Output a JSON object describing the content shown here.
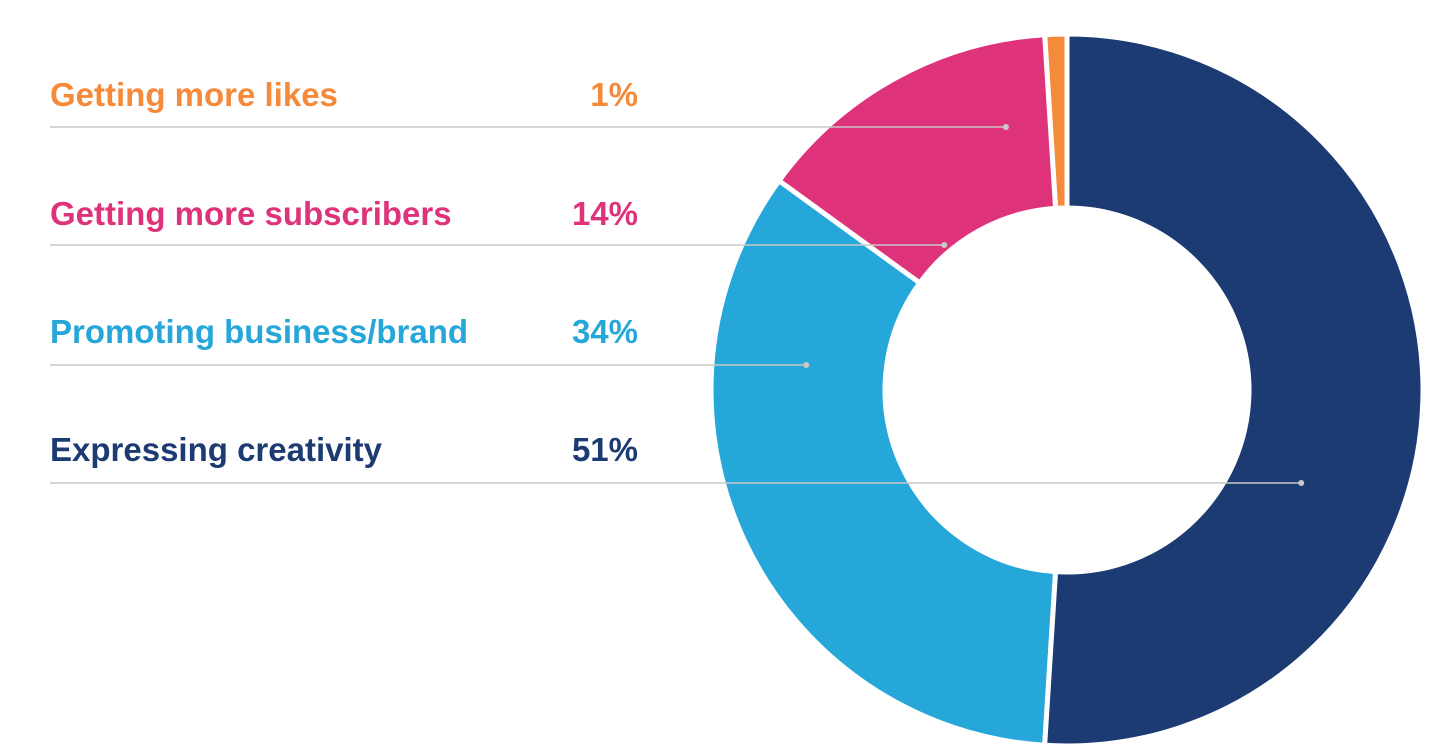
{
  "chart_data": {
    "type": "pie",
    "variant": "donut",
    "title": "",
    "legend_position": "left",
    "categories": [
      "Getting more likes",
      "Getting more subscribers",
      "Promoting business/brand",
      "Expressing creativity"
    ],
    "values": [
      1,
      14,
      34,
      51
    ],
    "value_labels": [
      "1%",
      "14%",
      "34%",
      "51%"
    ],
    "colors": [
      "#F58A3B",
      "#DE337B",
      "#26A7D9",
      "#1C3B73"
    ],
    "divider_color": "#C8C8C8"
  }
}
